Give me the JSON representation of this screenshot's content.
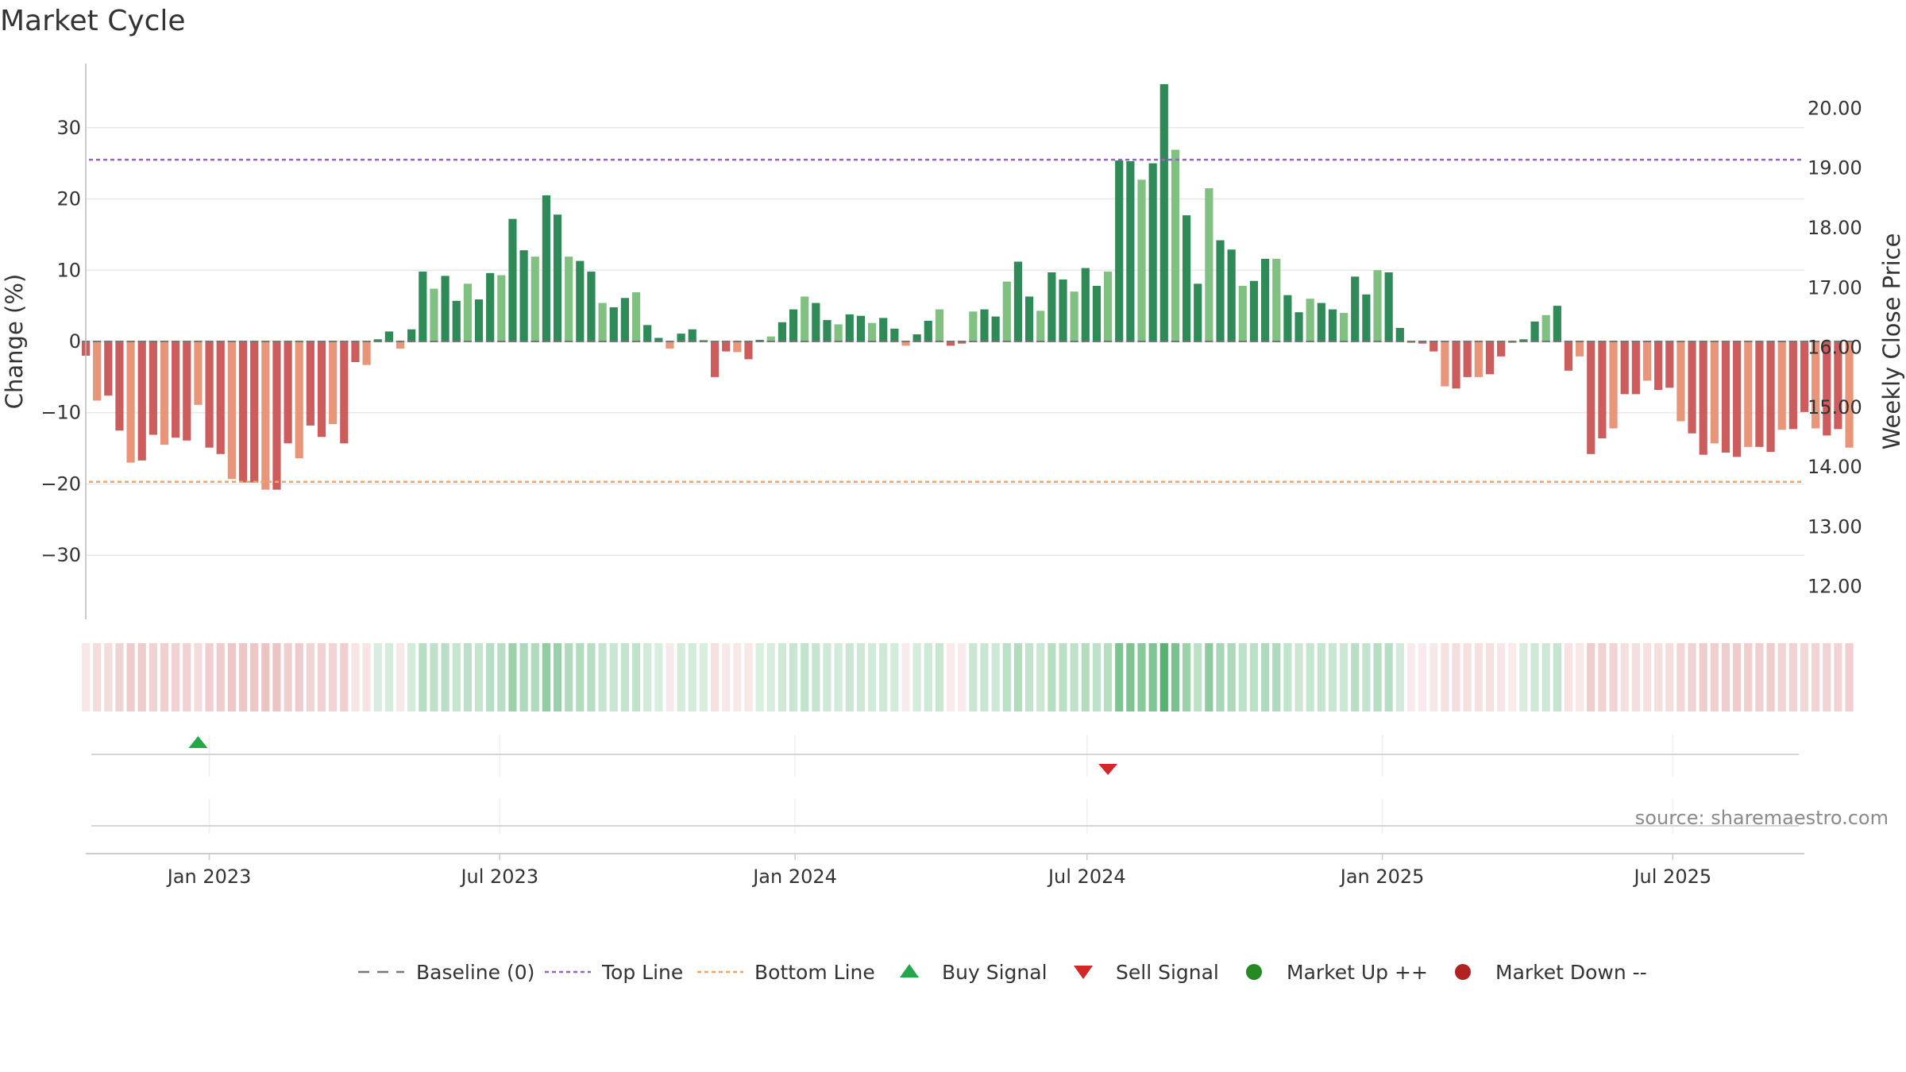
{
  "title": "Market Cycle",
  "source": "source: sharemaestro.com",
  "colors": {
    "strong_up": "#2e8b57",
    "weak_up": "#80c080",
    "strong_down": "#cd5c5c",
    "weak_down": "#e8957a",
    "top_line": "#9467bd",
    "bottom_line": "#f4a460",
    "buy_signal": "#22a848",
    "sell_signal": "#d62728",
    "market_up": "#228b22",
    "market_down": "#b22222",
    "baseline": "#777777"
  },
  "chart_data": {
    "type": "bar",
    "title": "Market Cycle",
    "ylabel": "Change (%)",
    "y2label": "Weekly Close Price",
    "ylim": [
      -39,
      39
    ],
    "y_ticks": [
      30,
      20,
      10,
      0,
      -10,
      -20,
      -30
    ],
    "y_tick_labels": [
      "30",
      "20",
      "10",
      "0",
      "−10",
      "−20",
      "−30"
    ],
    "y2lim": [
      11.45,
      20.75
    ],
    "y2_ticks": [
      20,
      19,
      18,
      17,
      16,
      15,
      14,
      13,
      12
    ],
    "y2_tick_labels": [
      "20.00",
      "19.00",
      "18.00",
      "17.00",
      "16.00",
      "15.00",
      "14.00",
      "13.00",
      "12.00"
    ],
    "x_start": "2022-10-16",
    "x_end": "2025-09-21",
    "x_ticks": [
      {
        "date": "2023-01-01",
        "label": "Jan 2023"
      },
      {
        "date": "2023-07-01",
        "label": "Jul 2023"
      },
      {
        "date": "2024-01-01",
        "label": "Jan 2024"
      },
      {
        "date": "2024-07-01",
        "label": "Jul 2024"
      },
      {
        "date": "2025-01-01",
        "label": "Jan 2025"
      },
      {
        "date": "2025-07-01",
        "label": "Jul 2025"
      }
    ],
    "first_week": "2022-10-16",
    "bar_interval_days": 7,
    "values": [
      -2,
      -8.3,
      -7.6,
      -12.5,
      -17,
      -16.7,
      -13.1,
      -14.5,
      -13.5,
      -13.9,
      -8.9,
      -14.9,
      -15.8,
      -19.3,
      -19.8,
      -19.8,
      -20.8,
      -20.8,
      -14.3,
      -16.4,
      -11.8,
      -13.4,
      -11.6,
      -14.3,
      -2.9,
      -3.3,
      0.3,
      1.4,
      -1,
      1.7,
      9.8,
      7.4,
      9.2,
      5.7,
      8.1,
      5.9,
      9.6,
      9.3,
      17.2,
      12.8,
      11.9,
      20.5,
      17.8,
      11.9,
      11.3,
      9.8,
      5.4,
      4.8,
      6.1,
      6.9,
      2.3,
      0.5,
      -1,
      1.1,
      1.7,
      0.2,
      -5,
      -1.4,
      -1.5,
      -2.5,
      0.2,
      0.7,
      2.7,
      4.5,
      6.3,
      5.4,
      3,
      2.4,
      3.8,
      3.6,
      2.6,
      3.3,
      1.8,
      -0.6,
      1,
      2.9,
      4.5,
      -0.6,
      -0.3,
      4.2,
      4.5,
      3.5,
      8.4,
      11.2,
      6.3,
      4.3,
      9.7,
      8.7,
      7,
      10.3,
      7.8,
      9.8,
      25.4,
      25.3,
      22.7,
      25,
      36.1,
      26.9,
      17.7,
      8.1,
      21.5,
      14.2,
      12.9,
      7.8,
      8.5,
      11.6,
      11.6,
      6.5,
      4.1,
      6,
      5.4,
      4.5,
      4,
      9.1,
      6.6,
      10,
      9.7,
      1.9,
      -0.1,
      -0.3,
      -1.4,
      -6.3,
      -6.6,
      -5,
      -5,
      -4.6,
      -2.1,
      -0.1,
      0.3,
      2.8,
      3.7,
      5,
      -4.1,
      -2.1,
      -15.8,
      -13.6,
      -12.2,
      -7.4,
      -7.4,
      -5.5,
      -6.8,
      -6.5,
      -11.2,
      -12.9,
      -15.9,
      -14.3,
      -15.6,
      -16.2,
      -14.8,
      -14.8,
      -15.5,
      -12.4,
      -12.3,
      -9.9,
      -12.2,
      -13.2,
      -12.3,
      -14.9
    ],
    "levels": {
      "baseline": 0,
      "top_line": 25.5,
      "bottom_line": -19.7
    },
    "buy_signals": [
      "2022-12-25"
    ],
    "sell_signals": [
      "2024-07-14"
    ],
    "legend": [
      "Baseline (0)",
      "Top Line",
      "Bottom Line",
      "Buy Signal",
      "Sell Signal",
      "Market Up ++",
      "Market Down --"
    ],
    "legend_position": "bottom-center"
  }
}
